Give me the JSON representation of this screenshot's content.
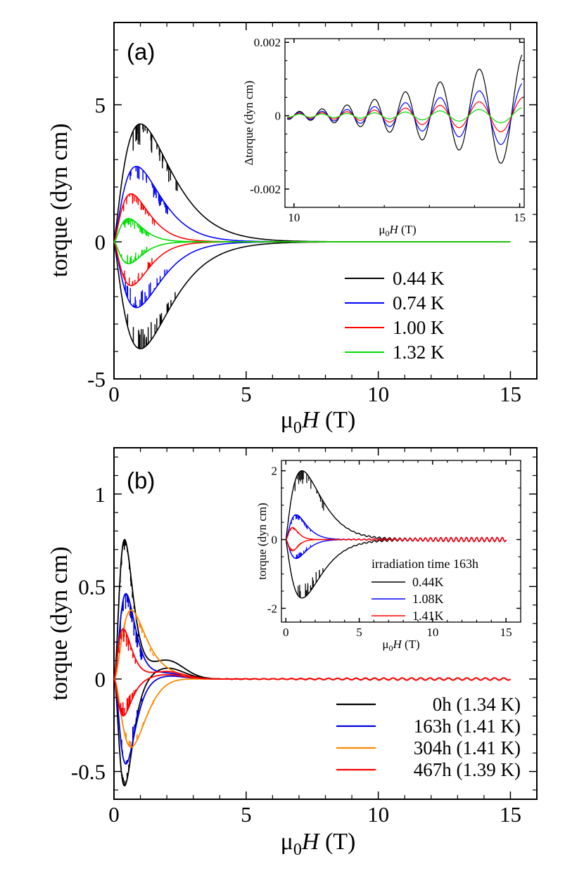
{
  "chart_data": [
    {
      "id": "a-main",
      "type": "line",
      "panel_label": "(a)",
      "xlabel_main": "μ",
      "xlabel_sub": "0",
      "xlabel_italic": "H",
      "xlabel_unit": " (T)",
      "ylabel": "torque (dyn cm)",
      "xlim": [
        0,
        16
      ],
      "ylim": [
        -5,
        8
      ],
      "xticks": [
        0,
        5,
        10,
        15
      ],
      "yticks": [
        -5,
        0,
        5
      ],
      "xtick_labels": [
        "0",
        "5",
        "10",
        "15"
      ],
      "ytick_labels": [
        "-5",
        "0",
        "5"
      ],
      "legend_position": "lower-right",
      "series": [
        {
          "name": "0.44 K",
          "color": "#000000",
          "amp_up": 4.3,
          "amp_down": -3.9,
          "peak": 1.0,
          "width": 0.85,
          "jitter": 0.6
        },
        {
          "name": "0.74 K",
          "color": "#0000ff",
          "amp_up": 2.75,
          "amp_down": -2.4,
          "peak": 0.85,
          "width": 0.75,
          "jitter": 0.45
        },
        {
          "name": "1.00 K",
          "color": "#ff0000",
          "amp_up": 1.75,
          "amp_down": -1.6,
          "peak": 0.65,
          "width": 0.7,
          "jitter": 0.3
        },
        {
          "name": "1.32 K",
          "color": "#00dd00",
          "amp_up": 0.85,
          "amp_down": -0.8,
          "peak": 0.55,
          "width": 0.6,
          "jitter": 0.25
        }
      ]
    },
    {
      "id": "a-inset",
      "type": "line",
      "xlabel_main": "μ",
      "xlabel_sub": "0",
      "xlabel_italic": "H",
      "xlabel_unit": " (T)",
      "ylabel": "Δtorque (dyn cm)",
      "xlim": [
        9.8,
        15.1
      ],
      "ylim": [
        -0.0025,
        0.0021
      ],
      "xticks": [
        10,
        15
      ],
      "yticks": [
        -0.002,
        0,
        0.002
      ],
      "xtick_labels": [
        "10",
        "15"
      ],
      "ytick_labels": [
        "-0.002",
        "0",
        "0.002"
      ],
      "series": [
        {
          "name": "0.44 K",
          "color": "#000000",
          "amp_start": 0.0001,
          "amp_end": 0.0016,
          "offset": 0.0001
        },
        {
          "name": "0.74 K",
          "color": "#0000ff",
          "amp_start": 8e-05,
          "amp_end": 0.0009,
          "offset": 0.0
        },
        {
          "name": "1.00 K",
          "color": "#ff0000",
          "amp_start": 6e-05,
          "amp_end": 0.0005,
          "offset": 0.0
        },
        {
          "name": "1.32 K",
          "color": "#00dd00",
          "amp_start": 4e-05,
          "amp_end": 0.00022,
          "offset": 0.0
        }
      ]
    },
    {
      "id": "b-main",
      "type": "line",
      "panel_label": "(b)",
      "xlabel_main": "μ",
      "xlabel_sub": "0",
      "xlabel_italic": "H",
      "xlabel_unit": " (T)",
      "ylabel": "torque (dyn cm)",
      "xlim": [
        0,
        16
      ],
      "ylim": [
        -0.65,
        1.25
      ],
      "xticks": [
        0,
        5,
        10,
        15
      ],
      "yticks": [
        -0.5,
        0,
        0.5,
        1
      ],
      "xtick_labels": [
        "0",
        "5",
        "10",
        "15"
      ],
      "ytick_labels": [
        "-0.5",
        "0",
        "0.5",
        "1"
      ],
      "legend_position": "lower-right",
      "series": [
        {
          "name": "0h (1.34 K)",
          "color": "#000000",
          "amp_up": 0.75,
          "amp_down": -0.58,
          "peak": 0.4,
          "width": 0.45,
          "hump": 0.1,
          "jitter": 0.04
        },
        {
          "name": "163h (1.41 K)",
          "color": "#0000dd",
          "amp_up": 0.46,
          "amp_down": -0.46,
          "peak": 0.45,
          "width": 0.45,
          "hump": 0.03,
          "jitter": 0.08
        },
        {
          "name": "304h (1.41 K)",
          "color": "#ff8800",
          "amp_up": 0.37,
          "amp_down": -0.37,
          "peak": 0.65,
          "width": 0.5,
          "hump": 0.02,
          "jitter": 0.03
        },
        {
          "name": "467h (1.39 K)",
          "color": "#ff0000",
          "amp_up": 0.27,
          "amp_down": -0.2,
          "peak": 0.35,
          "width": 0.55,
          "hump": 0.04,
          "jitter": 0.06
        }
      ]
    },
    {
      "id": "b-inset",
      "type": "line",
      "xlabel_main": "μ",
      "xlabel_sub": "0",
      "xlabel_italic": "H",
      "xlabel_unit": "  (T)",
      "ylabel": "torque (dyn cm)",
      "xlim": [
        -0.3,
        16
      ],
      "ylim": [
        -2.4,
        2.3
      ],
      "xticks": [
        0,
        5,
        10,
        15
      ],
      "yticks": [
        -2,
        0,
        2
      ],
      "xtick_labels": [
        "0",
        "5",
        "10",
        "15"
      ],
      "ytick_labels": [
        "-2",
        "0",
        "2"
      ],
      "legend_title": "irradiation time 163h",
      "series": [
        {
          "name": "0.44K",
          "color": "#000000",
          "amp_up": 2.0,
          "amp_down": -1.7,
          "peak": 1.1,
          "width": 0.9,
          "jitter": 0.3
        },
        {
          "name": "1.08K",
          "color": "#0000ff",
          "amp_up": 0.72,
          "amp_down": -0.55,
          "peak": 0.7,
          "width": 0.65,
          "jitter": 0.12
        },
        {
          "name": "1.41K",
          "color": "#ff0000",
          "amp_up": 0.35,
          "amp_down": -0.33,
          "peak": 0.45,
          "width": 0.5,
          "jitter": 0.05
        }
      ]
    }
  ]
}
